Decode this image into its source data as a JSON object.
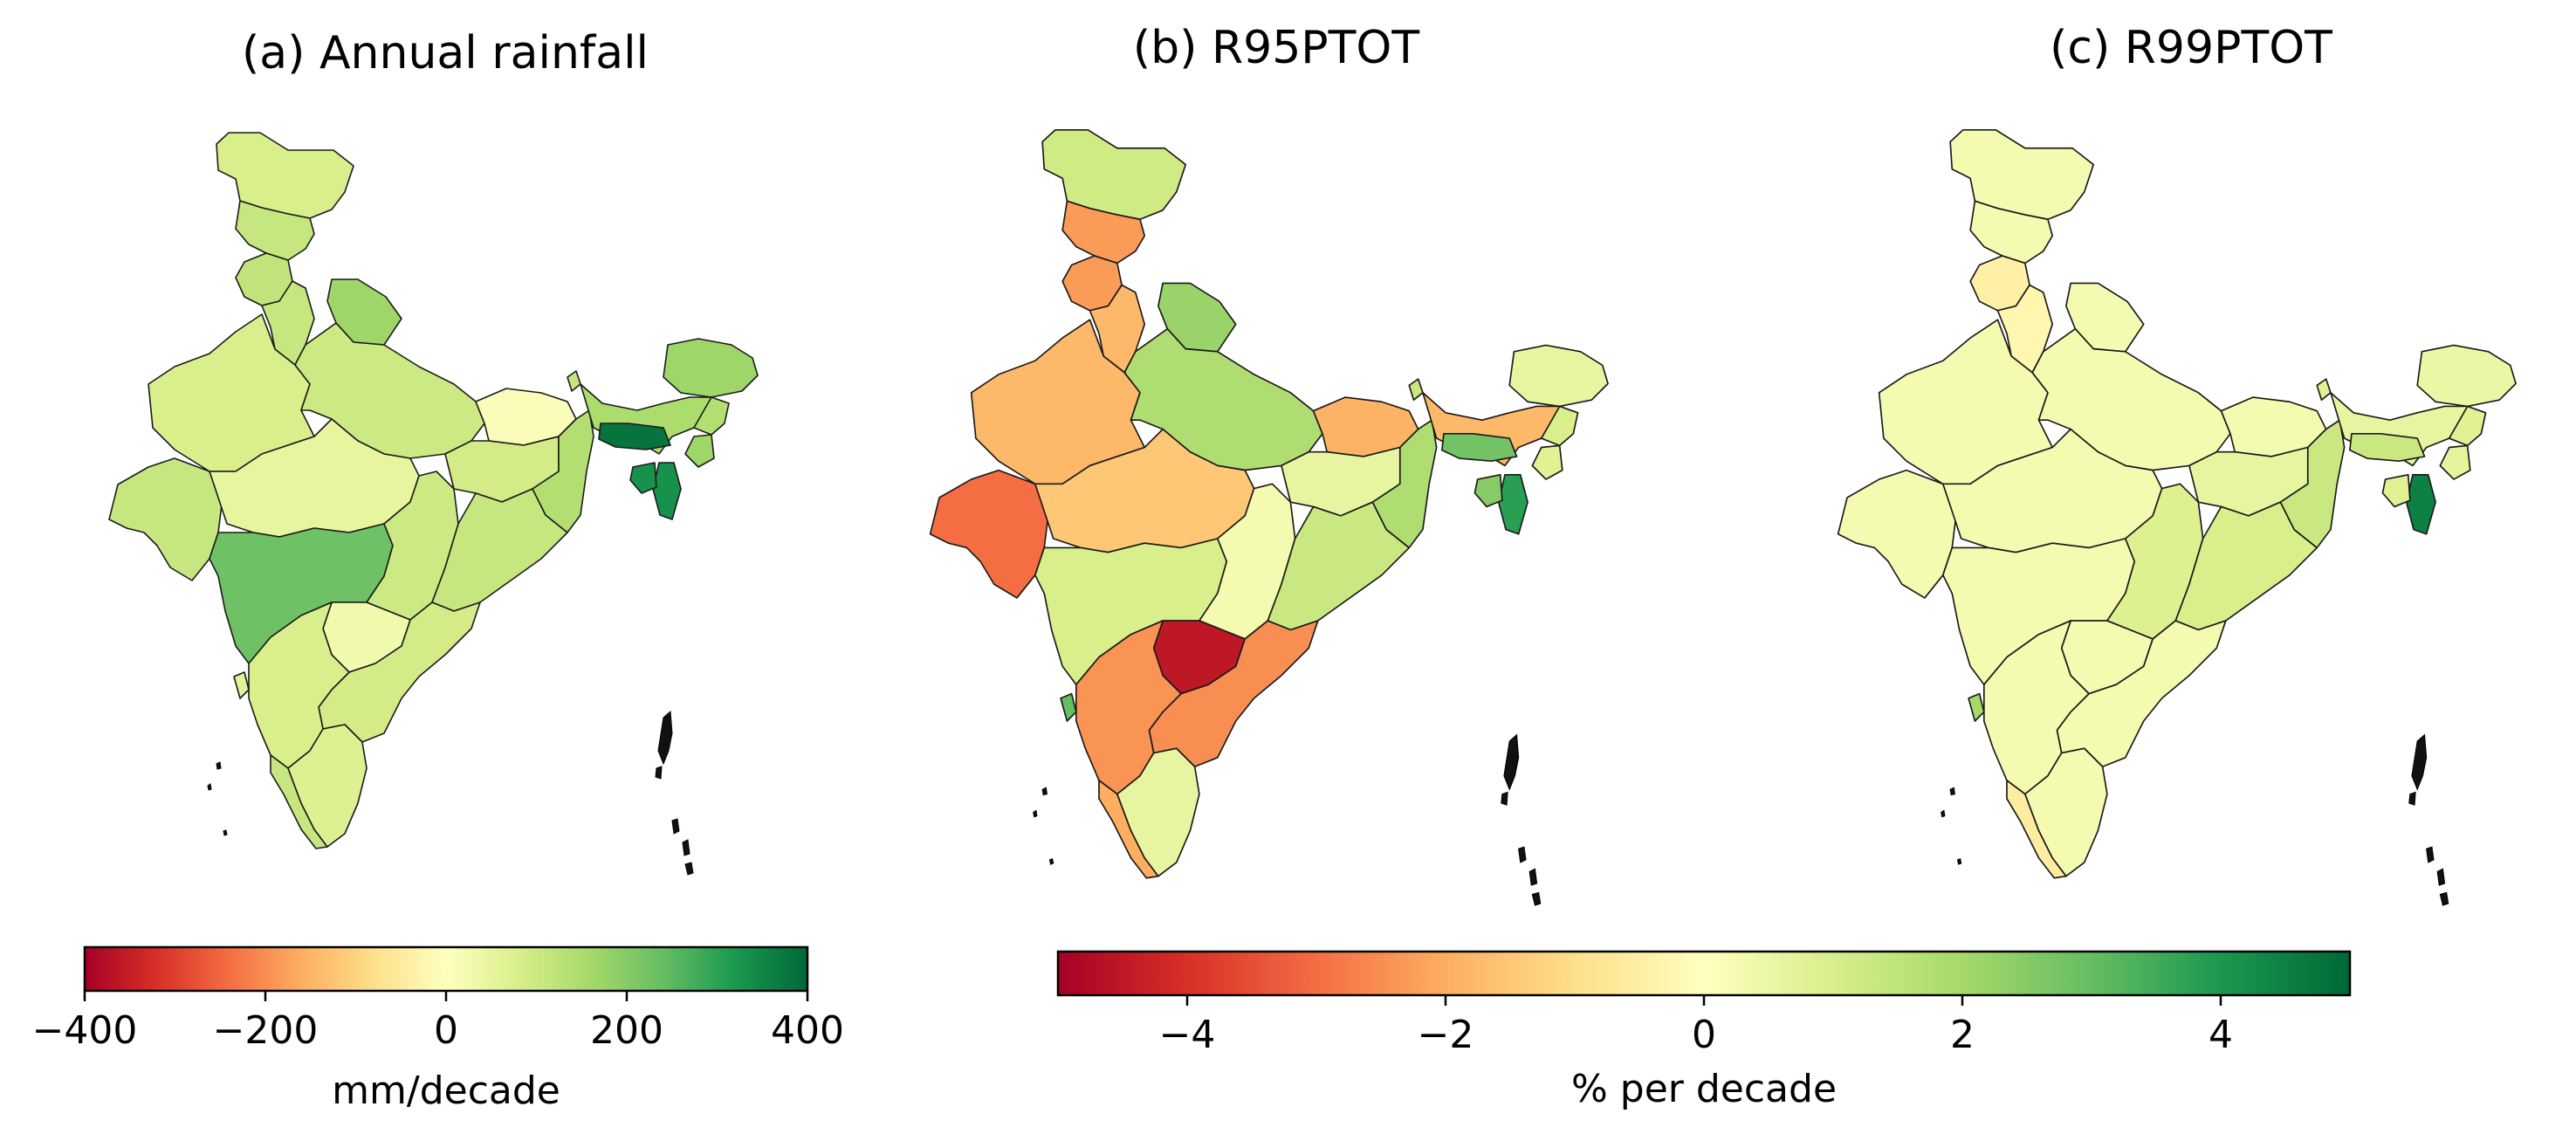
{
  "figure": {
    "description_free": true
  },
  "chart_data": [
    {
      "type": "choropleth",
      "title": "(a) Annual rainfall",
      "colormap": "RdYlGn",
      "vmin": -400,
      "vmax": 400,
      "colorbar": {
        "label": "mm/decade",
        "ticks": [
          -400,
          -200,
          0,
          200,
          400
        ],
        "tick_labels": [
          "−400",
          "−200",
          "0",
          "200",
          "400"
        ]
      },
      "regions": [
        {
          "id": "jammu-kashmir",
          "value": 80
        },
        {
          "id": "himachal-pradesh",
          "value": 110
        },
        {
          "id": "punjab",
          "value": 120
        },
        {
          "id": "haryana",
          "value": 110
        },
        {
          "id": "uttarakhand",
          "value": 170
        },
        {
          "id": "rajasthan",
          "value": 80
        },
        {
          "id": "gujarat",
          "value": 110
        },
        {
          "id": "uttar-pradesh",
          "value": 100
        },
        {
          "id": "madhya-pradesh",
          "value": 50
        },
        {
          "id": "bihar",
          "value": 10
        },
        {
          "id": "maharashtra",
          "value": 230
        },
        {
          "id": "chhattisgarh",
          "value": 100
        },
        {
          "id": "jharkhand",
          "value": 90
        },
        {
          "id": "odisha",
          "value": 110
        },
        {
          "id": "west-bengal",
          "value": 140
        },
        {
          "id": "telangana",
          "value": 30
        },
        {
          "id": "andhra-pradesh",
          "value": 90
        },
        {
          "id": "karnataka",
          "value": 80
        },
        {
          "id": "kerala",
          "value": 110
        },
        {
          "id": "tamil-nadu",
          "value": 70
        },
        {
          "id": "goa",
          "value": 60
        },
        {
          "id": "sikkim",
          "value": 110
        },
        {
          "id": "arunachal-pradesh",
          "value": 170
        },
        {
          "id": "assam",
          "value": 150
        },
        {
          "id": "meghalaya",
          "value": 380
        },
        {
          "id": "nagaland",
          "value": 140
        },
        {
          "id": "manipur",
          "value": 170
        },
        {
          "id": "mizoram",
          "value": 330
        },
        {
          "id": "tripura",
          "value": 330
        }
      ]
    },
    {
      "type": "choropleth",
      "title": "(b)  R95PTOT",
      "colormap": "RdYlGn",
      "vmin": -5,
      "vmax": 5,
      "colorbar": {
        "label": "% per decade",
        "ticks": [
          -4,
          -2,
          0,
          2,
          4
        ],
        "tick_labels": [
          "−4",
          "−2",
          "0",
          "2",
          "4"
        ]
      },
      "regions": [
        {
          "id": "jammu-kashmir",
          "value": 1.2
        },
        {
          "id": "himachal-pradesh",
          "value": -2.3
        },
        {
          "id": "punjab",
          "value": -2.3
        },
        {
          "id": "haryana",
          "value": -1.8
        },
        {
          "id": "uttarakhand",
          "value": 2.2
        },
        {
          "id": "rajasthan",
          "value": -1.8
        },
        {
          "id": "gujarat",
          "value": -3.0
        },
        {
          "id": "uttar-pradesh",
          "value": 1.8
        },
        {
          "id": "madhya-pradesh",
          "value": -1.5
        },
        {
          "id": "bihar",
          "value": -1.9
        },
        {
          "id": "maharashtra",
          "value": 1.0
        },
        {
          "id": "chhattisgarh",
          "value": 0.3
        },
        {
          "id": "jharkhand",
          "value": 0.6
        },
        {
          "id": "odisha",
          "value": 1.3
        },
        {
          "id": "west-bengal",
          "value": 1.8
        },
        {
          "id": "telangana",
          "value": -4.5
        },
        {
          "id": "andhra-pradesh",
          "value": -2.5
        },
        {
          "id": "karnataka",
          "value": -2.4
        },
        {
          "id": "kerala",
          "value": -2.0
        },
        {
          "id": "tamil-nadu",
          "value": 0.6
        },
        {
          "id": "goa",
          "value": 3.0
        },
        {
          "id": "sikkim",
          "value": 1.3
        },
        {
          "id": "arunachal-pradesh",
          "value": 0.6
        },
        {
          "id": "assam",
          "value": -1.8
        },
        {
          "id": "meghalaya",
          "value": 2.8
        },
        {
          "id": "nagaland",
          "value": 1.0
        },
        {
          "id": "manipur",
          "value": 0.8
        },
        {
          "id": "mizoram",
          "value": 3.8
        },
        {
          "id": "tripura",
          "value": 2.5
        }
      ]
    },
    {
      "type": "choropleth",
      "title": "(c)  R99PTOT",
      "colormap": "RdYlGn",
      "vmin": -5,
      "vmax": 5,
      "colorbar": "shared with (b)",
      "regions": [
        {
          "id": "jammu-kashmir",
          "value": 0.3
        },
        {
          "id": "himachal-pradesh",
          "value": 0.3
        },
        {
          "id": "punjab",
          "value": -0.5
        },
        {
          "id": "haryana",
          "value": -0.3
        },
        {
          "id": "uttarakhand",
          "value": 0.3
        },
        {
          "id": "rajasthan",
          "value": 0.3
        },
        {
          "id": "gujarat",
          "value": 0.3
        },
        {
          "id": "uttar-pradesh",
          "value": 0.3
        },
        {
          "id": "madhya-pradesh",
          "value": 0.3
        },
        {
          "id": "bihar",
          "value": 0.3
        },
        {
          "id": "maharashtra",
          "value": 0.3
        },
        {
          "id": "chhattisgarh",
          "value": 0.9
        },
        {
          "id": "jharkhand",
          "value": 0.6
        },
        {
          "id": "odisha",
          "value": 1.0
        },
        {
          "id": "west-bengal",
          "value": 1.3
        },
        {
          "id": "telangana",
          "value": 0.3
        },
        {
          "id": "andhra-pradesh",
          "value": 0.3
        },
        {
          "id": "karnataka",
          "value": 0.3
        },
        {
          "id": "kerala",
          "value": -0.6
        },
        {
          "id": "tamil-nadu",
          "value": 0.3
        },
        {
          "id": "goa",
          "value": 2.0
        },
        {
          "id": "sikkim",
          "value": 0.8
        },
        {
          "id": "arunachal-pradesh",
          "value": 0.5
        },
        {
          "id": "assam",
          "value": 0.6
        },
        {
          "id": "meghalaya",
          "value": 1.3
        },
        {
          "id": "nagaland",
          "value": 0.8
        },
        {
          "id": "manipur",
          "value": 0.7
        },
        {
          "id": "mizoram",
          "value": 4.5
        },
        {
          "id": "tripura",
          "value": 0.8
        }
      ]
    }
  ]
}
